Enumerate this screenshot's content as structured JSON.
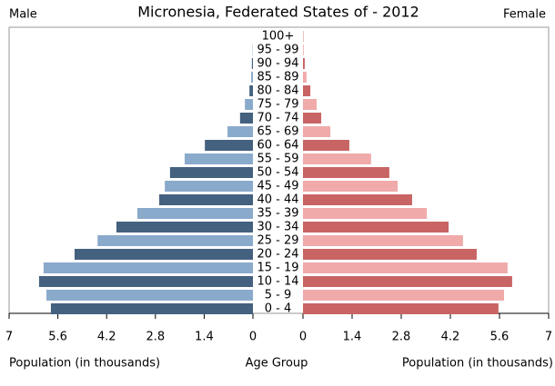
{
  "chart_data": {
    "type": "population-pyramid",
    "title": "Micronesia, Federated States of - 2012",
    "left_label": "Male",
    "right_label": "Female",
    "xlabel_left": "Population (in thousands)",
    "xlabel_right": "Population (in thousands)",
    "center_label": "Age Group",
    "categories": [
      "0 - 4",
      "5 - 9",
      "10 - 14",
      "15 - 19",
      "20 - 24",
      "25 - 29",
      "30 - 34",
      "35 - 39",
      "40 - 44",
      "45 - 49",
      "50 - 54",
      "55 - 59",
      "60 - 64",
      "65 - 69",
      "70 - 74",
      "75 - 79",
      "80 - 84",
      "85 - 89",
      "90 - 94",
      "95 - 99",
      "100+"
    ],
    "series": [
      {
        "name": "Male",
        "colors": [
          "#44617f",
          "#8aaacb"
        ],
        "values": [
          5.8,
          5.93,
          6.14,
          6.01,
          5.12,
          4.46,
          3.92,
          3.32,
          2.69,
          2.53,
          2.38,
          1.96,
          1.38,
          0.73,
          0.37,
          0.23,
          0.1,
          0.05,
          0.03,
          0.01,
          0
        ]
      },
      {
        "name": "Female",
        "colors": [
          "#c86464",
          "#f0aaaa"
        ],
        "values": [
          5.57,
          5.73,
          5.96,
          5.83,
          4.95,
          4.56,
          4.15,
          3.53,
          3.11,
          2.7,
          2.46,
          1.94,
          1.32,
          0.78,
          0.52,
          0.39,
          0.21,
          0.1,
          0.05,
          0.02,
          0.01
        ]
      }
    ],
    "xlim": [
      0,
      7
    ],
    "xticks": [
      0,
      1.4,
      2.8,
      4.2,
      5.6,
      7
    ]
  }
}
